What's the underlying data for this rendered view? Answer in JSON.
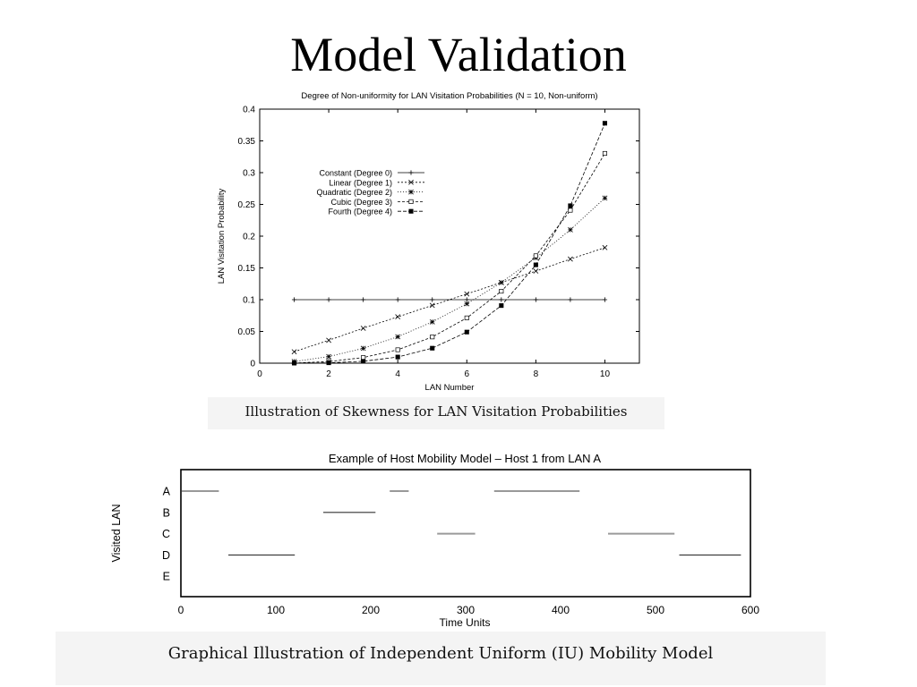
{
  "slide": {
    "title": "Model Validation"
  },
  "captions": {
    "top": "Illustration of Skewness for LAN Visitation Probabilities",
    "bottom": "Graphical Illustration of Independent Uniform (IU) Mobility Model"
  },
  "chart_data": [
    {
      "type": "line",
      "title": "Degree of Non-uniformity for LAN Visitation Probabilities (N = 10, Non-uniform)",
      "xlabel": "LAN Number",
      "ylabel": "LAN Visitation Probability",
      "xlim": [
        0,
        11
      ],
      "ylim": [
        0,
        0.4
      ],
      "xticks": [
        "0",
        "2",
        "4",
        "6",
        "8",
        "10"
      ],
      "yticks": [
        "0",
        "0.05",
        "0.1",
        "0.15",
        "0.2",
        "0.25",
        "0.3",
        "0.35",
        "0.4"
      ],
      "x": [
        1,
        2,
        3,
        4,
        5,
        6,
        7,
        8,
        9,
        10
      ],
      "legend_position": "top-left",
      "series": [
        {
          "name": "Constant (Degree 0)",
          "marker": "plus",
          "values": [
            0.1,
            0.1,
            0.1,
            0.1,
            0.1,
            0.1,
            0.1,
            0.1,
            0.1,
            0.1
          ]
        },
        {
          "name": "Linear (Degree 1)",
          "marker": "x",
          "values": [
            0.018,
            0.036,
            0.055,
            0.073,
            0.091,
            0.109,
            0.127,
            0.145,
            0.164,
            0.182
          ]
        },
        {
          "name": "Quadratic (Degree 2)",
          "marker": "asterisk",
          "values": [
            0.0026,
            0.0104,
            0.0234,
            0.0416,
            0.065,
            0.0935,
            0.127,
            0.166,
            0.21,
            0.26
          ]
        },
        {
          "name": "Cubic (Degree 3)",
          "marker": "square",
          "values": [
            0.0003,
            0.0026,
            0.0089,
            0.0211,
            0.0413,
            0.0713,
            0.1133,
            0.1691,
            0.2408,
            0.3303
          ]
        },
        {
          "name": "Fourth (Degree 4)",
          "marker": "filled-square",
          "values": [
            0.0001,
            0.0006,
            0.003,
            0.0097,
            0.0236,
            0.049,
            0.0907,
            0.1548,
            0.2479,
            0.3778
          ]
        }
      ]
    },
    {
      "type": "timeline",
      "title": "Example of Host Mobility Model – Host 1 from LAN A",
      "xlabel": "Time Units",
      "ylabel": "Visited LAN",
      "xlim": [
        0,
        600
      ],
      "xticks": [
        "0",
        "100",
        "200",
        "300",
        "400",
        "500",
        "600"
      ],
      "categories": [
        "A",
        "B",
        "C",
        "D",
        "E"
      ],
      "segments": [
        {
          "lan": "A",
          "start": 0,
          "end": 40
        },
        {
          "lan": "D",
          "start": 50,
          "end": 120
        },
        {
          "lan": "B",
          "start": 150,
          "end": 205
        },
        {
          "lan": "A",
          "start": 220,
          "end": 240
        },
        {
          "lan": "C",
          "start": 270,
          "end": 310
        },
        {
          "lan": "A",
          "start": 330,
          "end": 420
        },
        {
          "lan": "C",
          "start": 450,
          "end": 520
        },
        {
          "lan": "D",
          "start": 525,
          "end": 590
        }
      ]
    }
  ]
}
